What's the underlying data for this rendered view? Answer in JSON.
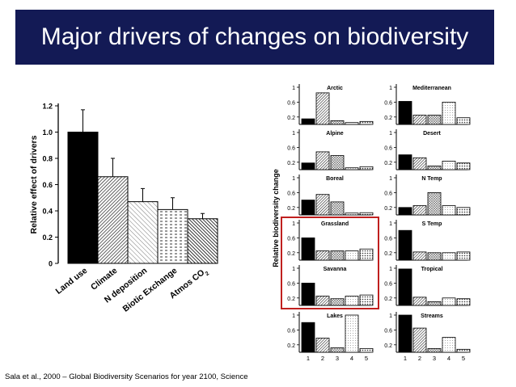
{
  "title": "Major drivers of changes on biodiversity",
  "citation": "Sala et al., 2000 – Global Biodiversity Scenarios for year 2100, Science",
  "colors": {
    "title_bg": "#131a55",
    "highlight_box": "#c0201f"
  },
  "chart_data": [
    {
      "type": "bar",
      "ylabel": "Relative effect of drivers",
      "categories": [
        "Land use",
        "Climate",
        "N deposition",
        "Biotic Exchange",
        "Atmos CO2"
      ],
      "values": [
        1.0,
        0.66,
        0.47,
        0.41,
        0.34
      ],
      "errors": [
        0.17,
        0.14,
        0.1,
        0.09,
        0.04
      ],
      "ylim": [
        0,
        1.2
      ],
      "yticks": [
        "0",
        "0.2",
        "0.4",
        "0.6",
        "0.8",
        "1.0",
        "1.2"
      ],
      "patterns": [
        "solid",
        "diag-dense",
        "diag-light",
        "dashes",
        "diag-dark"
      ]
    },
    {
      "type": "bar",
      "ylabel": "Relative biodiversity change",
      "xticks": [
        "1",
        "2",
        "3",
        "4",
        "5"
      ],
      "yticks": [
        "0.2",
        "0.6",
        "1"
      ],
      "ylim": [
        0,
        1
      ],
      "highlighted": [
        "Grassland",
        "Savanna"
      ],
      "panels": [
        {
          "name": "Arctic",
          "values": [
            0.15,
            0.85,
            0.1,
            0.05,
            0.08
          ]
        },
        {
          "name": "Mediterranean",
          "values": [
            0.62,
            0.25,
            0.25,
            0.6,
            0.18
          ]
        },
        {
          "name": "Alpine",
          "values": [
            0.18,
            0.48,
            0.38,
            0.05,
            0.08
          ]
        },
        {
          "name": "Desert",
          "values": [
            0.4,
            0.32,
            0.1,
            0.23,
            0.18
          ]
        },
        {
          "name": "Boreal",
          "values": [
            0.4,
            0.55,
            0.35,
            0.05,
            0.06
          ]
        },
        {
          "name": "N Temp",
          "values": [
            0.2,
            0.25,
            0.6,
            0.25,
            0.2
          ]
        },
        {
          "name": "Grassland",
          "values": [
            0.6,
            0.25,
            0.25,
            0.25,
            0.3
          ]
        },
        {
          "name": "S Temp",
          "values": [
            0.8,
            0.22,
            0.2,
            0.2,
            0.22
          ]
        },
        {
          "name": "Savanna",
          "values": [
            0.6,
            0.25,
            0.18,
            0.25,
            0.28
          ]
        },
        {
          "name": "Tropical",
          "values": [
            0.98,
            0.22,
            0.1,
            0.2,
            0.18
          ]
        },
        {
          "name": "Lakes",
          "values": [
            0.8,
            0.38,
            0.12,
            1.0,
            0.1
          ]
        },
        {
          "name": "Streams",
          "values": [
            1.0,
            0.65,
            0.1,
            0.4,
            0.08
          ]
        }
      ]
    }
  ]
}
